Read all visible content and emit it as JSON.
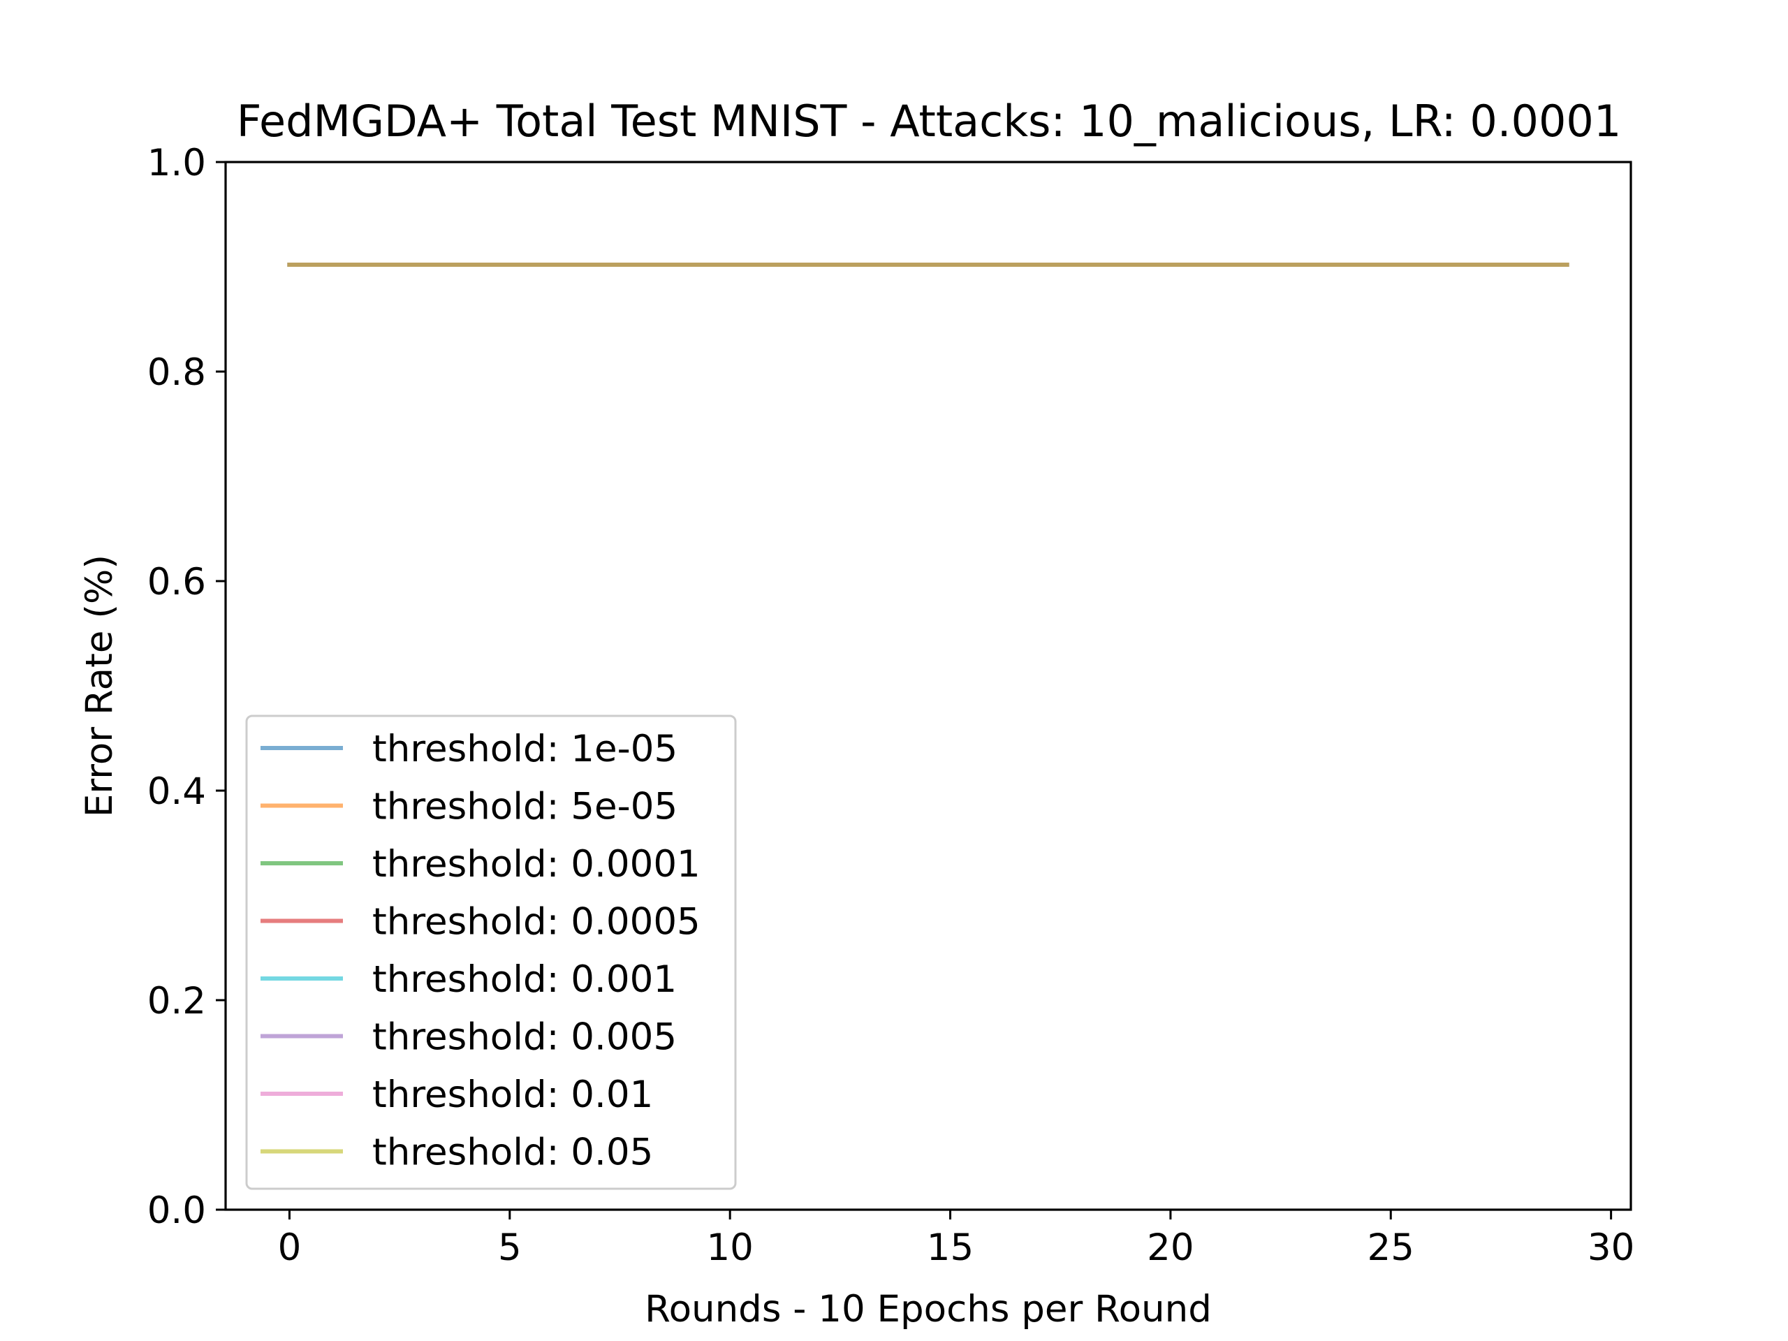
{
  "chart_data": {
    "type": "line",
    "title": "FedMGDA+ Total Test MNIST - Attacks: 10_malicious, LR: 0.0001",
    "xlabel": "Rounds - 10 Epochs per Round",
    "ylabel": "Error Rate (%)",
    "xlim": [
      -1.45,
      30.45
    ],
    "ylim": [
      0.0,
      1.0
    ],
    "xticks": [
      0,
      5,
      10,
      15,
      20,
      25,
      30
    ],
    "xtick_labels": [
      "0",
      "5",
      "10",
      "15",
      "20",
      "25",
      "30"
    ],
    "yticks": [
      0.0,
      0.2,
      0.4,
      0.6,
      0.8,
      1.0
    ],
    "ytick_labels": [
      "0.0",
      "0.2",
      "0.4",
      "0.6",
      "0.8",
      "1.0"
    ],
    "grid": false,
    "legend_location": "lower-left",
    "line_alpha": 0.6,
    "x": [
      0,
      1,
      2,
      3,
      4,
      5,
      6,
      7,
      8,
      9,
      10,
      11,
      12,
      13,
      14,
      15,
      16,
      17,
      18,
      19,
      20,
      21,
      22,
      23,
      24,
      25,
      26,
      27,
      28,
      29
    ],
    "series": [
      {
        "name": "threshold: 1e-05",
        "color": "#1f77b4",
        "values": [
          0.902,
          0.902,
          0.902,
          0.902,
          0.902,
          0.902,
          0.902,
          0.902,
          0.902,
          0.902,
          0.902,
          0.902,
          0.902,
          0.902,
          0.902,
          0.902,
          0.902,
          0.902,
          0.902,
          0.902,
          0.902,
          0.902,
          0.902,
          0.902,
          0.902,
          0.902,
          0.902,
          0.902,
          0.902,
          0.902
        ]
      },
      {
        "name": "threshold: 5e-05",
        "color": "#ff7f0e",
        "values": [
          0.902,
          0.902,
          0.902,
          0.902,
          0.902,
          0.902,
          0.902,
          0.902,
          0.902,
          0.902,
          0.902,
          0.902,
          0.902,
          0.902,
          0.902,
          0.902,
          0.902,
          0.902,
          0.902,
          0.902,
          0.902,
          0.902,
          0.902,
          0.902,
          0.902,
          0.902,
          0.902,
          0.902,
          0.902,
          0.902
        ]
      },
      {
        "name": "threshold: 0.0001",
        "color": "#2ca02c",
        "values": [
          0.902,
          0.902,
          0.902,
          0.902,
          0.902,
          0.902,
          0.902,
          0.902,
          0.902,
          0.902,
          0.902,
          0.902,
          0.902,
          0.902,
          0.902,
          0.902,
          0.902,
          0.902,
          0.902,
          0.902,
          0.902,
          0.902,
          0.902,
          0.902,
          0.902,
          0.902,
          0.902,
          0.902,
          0.902,
          0.902
        ]
      },
      {
        "name": "threshold: 0.0005",
        "color": "#d62728",
        "values": [
          0.902,
          0.902,
          0.902,
          0.902,
          0.902,
          0.902,
          0.902,
          0.902,
          0.902,
          0.902,
          0.902,
          0.902,
          0.902,
          0.902,
          0.902,
          0.902,
          0.902,
          0.902,
          0.902,
          0.902,
          0.902,
          0.902,
          0.902,
          0.902,
          0.902,
          0.902,
          0.902,
          0.902,
          0.902,
          0.902
        ]
      },
      {
        "name": "threshold: 0.001",
        "color": "#17becf",
        "values": [
          0.902,
          0.902,
          0.902,
          0.902,
          0.902,
          0.902,
          0.902,
          0.902,
          0.902,
          0.902,
          0.902,
          0.902,
          0.902,
          0.902,
          0.902,
          0.902,
          0.902,
          0.902,
          0.902,
          0.902,
          0.902,
          0.902,
          0.902,
          0.902,
          0.902,
          0.902,
          0.902,
          0.902,
          0.902,
          0.902
        ]
      },
      {
        "name": "threshold: 0.005",
        "color": "#9467bd",
        "values": [
          0.902,
          0.902,
          0.902,
          0.902,
          0.902,
          0.902,
          0.902,
          0.902,
          0.902,
          0.902,
          0.902,
          0.902,
          0.902,
          0.902,
          0.902,
          0.902,
          0.902,
          0.902,
          0.902,
          0.902,
          0.902,
          0.902,
          0.902,
          0.902,
          0.902,
          0.902,
          0.902,
          0.902,
          0.902,
          0.902
        ]
      },
      {
        "name": "threshold: 0.01",
        "color": "#e377c2",
        "values": [
          0.902,
          0.902,
          0.902,
          0.902,
          0.902,
          0.902,
          0.902,
          0.902,
          0.902,
          0.902,
          0.902,
          0.902,
          0.902,
          0.902,
          0.902,
          0.902,
          0.902,
          0.902,
          0.902,
          0.902,
          0.902,
          0.902,
          0.902,
          0.902,
          0.902,
          0.902,
          0.902,
          0.902,
          0.902,
          0.902
        ]
      },
      {
        "name": "threshold: 0.05",
        "color": "#bcbd22",
        "values": [
          0.902,
          0.902,
          0.902,
          0.902,
          0.902,
          0.902,
          0.902,
          0.902,
          0.902,
          0.902,
          0.902,
          0.902,
          0.902,
          0.902,
          0.902,
          0.902,
          0.902,
          0.902,
          0.902,
          0.902,
          0.902,
          0.902,
          0.902,
          0.902,
          0.902,
          0.902,
          0.902,
          0.902,
          0.902,
          0.902
        ]
      }
    ]
  }
}
